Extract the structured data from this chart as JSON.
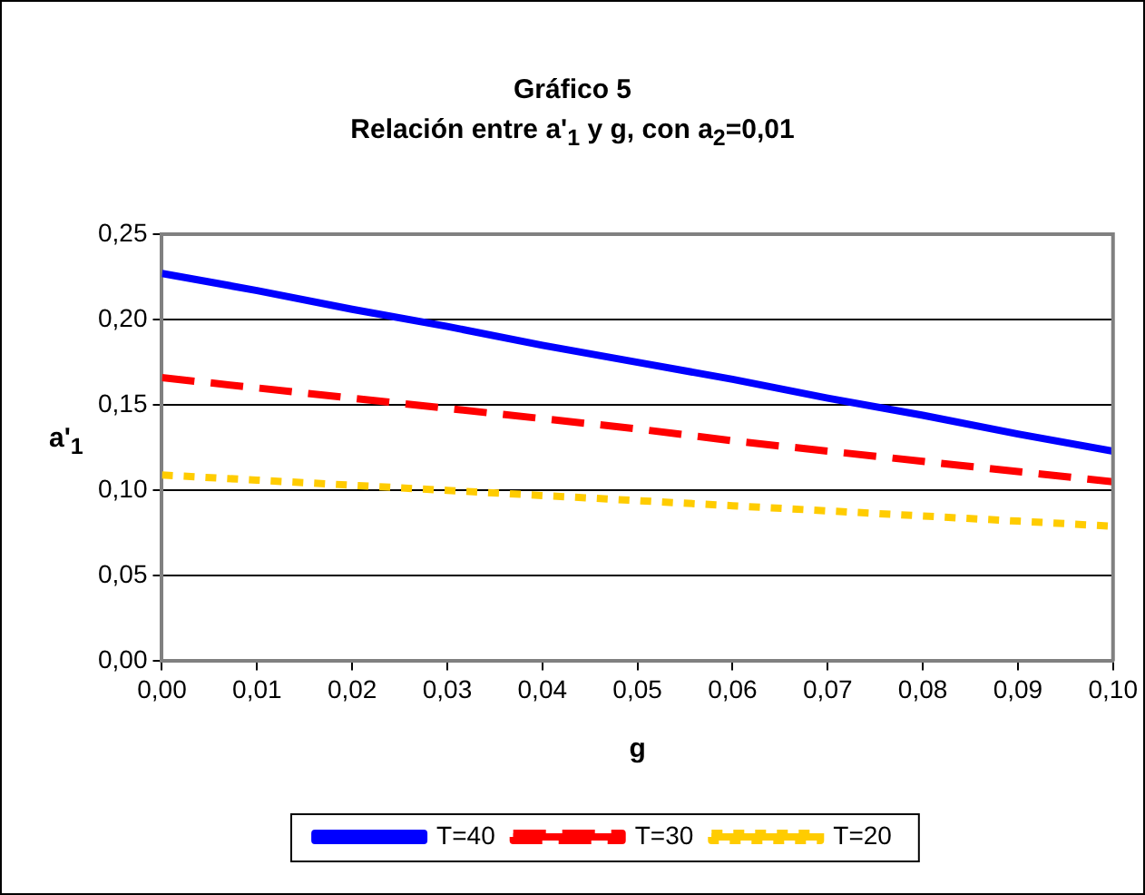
{
  "chart_data": {
    "type": "line",
    "title": "Gráfico 5",
    "subtitle": "Relación entre a'$_{1}$ y g, con a$_{2}$=0,01",
    "xlabel": "g",
    "ylabel": "a'$_{1}$",
    "x": [
      0,
      0.01,
      0.02,
      0.03,
      0.04,
      0.05,
      0.06,
      0.07,
      0.08,
      0.09,
      0.1
    ],
    "series": [
      {
        "name": "T=40",
        "color": "#0000ff",
        "line_style": "solid",
        "values": [
          0.227,
          0.217,
          0.206,
          0.196,
          0.185,
          0.175,
          0.165,
          0.154,
          0.144,
          0.133,
          0.123
        ]
      },
      {
        "name": "T=30",
        "color": "#ff0000",
        "line_style": "dashed",
        "values": [
          0.166,
          0.16,
          0.154,
          0.148,
          0.142,
          0.136,
          0.129,
          0.123,
          0.117,
          0.111,
          0.105
        ]
      },
      {
        "name": "T=20",
        "color": "#ffcc00",
        "line_style": "dotted",
        "values": [
          0.109,
          0.106,
          0.103,
          0.1,
          0.097,
          0.094,
          0.091,
          0.088,
          0.085,
          0.082,
          0.079
        ]
      }
    ],
    "xlim": [
      0,
      0.1
    ],
    "xticks": [
      {
        "value": 0,
        "label": "0,00"
      },
      {
        "value": 0.01,
        "label": "0,01"
      },
      {
        "value": 0.02,
        "label": "0,02"
      },
      {
        "value": 0.03,
        "label": "0,03"
      },
      {
        "value": 0.04,
        "label": "0,04"
      },
      {
        "value": 0.05,
        "label": "0,05"
      },
      {
        "value": 0.06,
        "label": "0,06"
      },
      {
        "value": 0.07,
        "label": "0,07"
      },
      {
        "value": 0.08,
        "label": "0,08"
      },
      {
        "value": 0.09,
        "label": "0,09"
      },
      {
        "value": 0.1,
        "label": "0,10"
      }
    ],
    "ylim": [
      0,
      0.25
    ],
    "yticks": [
      {
        "value": 0,
        "label": "0,00"
      },
      {
        "value": 0.05,
        "label": "0,05"
      },
      {
        "value": 0.1,
        "label": "0,10"
      },
      {
        "value": 0.15,
        "label": "0,15"
      },
      {
        "value": 0.2,
        "label": "0,20"
      },
      {
        "value": 0.25,
        "label": "0,25"
      }
    ],
    "grid": "y",
    "legend": "bottom",
    "marker": "none"
  }
}
